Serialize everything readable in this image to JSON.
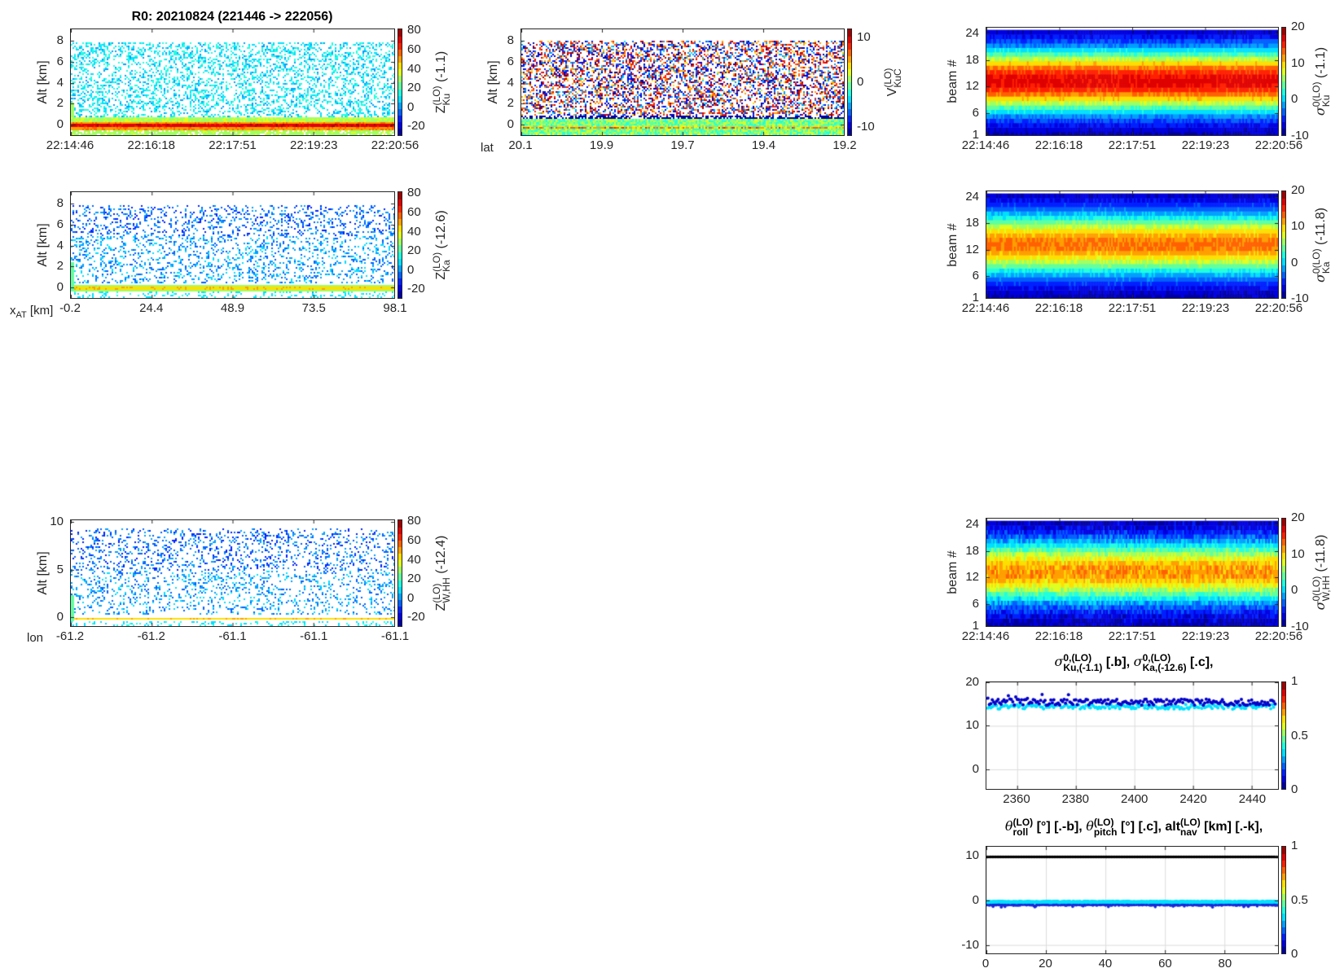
{
  "figure_title": "R0:  20210824 (221446 -> 222056)",
  "time_ticks": [
    "22:14:46",
    "22:16:18",
    "22:17:51",
    "22:19:23",
    "22:20:56"
  ],
  "colors": {
    "ku_dots": "#0000c8",
    "ka_dots": "#00e0ff",
    "alt_dots": "#000000"
  },
  "panels": {
    "ku_refl": {
      "ylabel": "Alt [km]",
      "yticks": [
        0,
        2,
        4,
        6,
        8
      ],
      "yrange": [
        -1,
        9.1
      ],
      "cbticks": [
        80,
        60,
        40,
        20,
        0,
        -20
      ],
      "cbrange": [
        -30,
        82
      ],
      "cb_main": "Z",
      "cb_sup": "(LO)",
      "cb_sub": "Ku",
      "cb_suffix": " (-1.1)"
    },
    "ku_vel": {
      "ylabel": "Alt [km]",
      "yticks": [
        0,
        2,
        4,
        6,
        8
      ],
      "yrange": [
        -1,
        9.1
      ],
      "xlabel": "lat",
      "xticks": [
        "20.1",
        "19.9",
        "19.7",
        "19.4",
        "19.2"
      ],
      "cbticks": [
        10,
        0,
        -10
      ],
      "cbrange": [
        -12,
        12
      ],
      "cb_main": "V",
      "cb_sup": "(LO)",
      "cb_sub": "KuC"
    },
    "ku_sigma_beam": {
      "ylabel": "beam #",
      "yticks": [
        1,
        6,
        12,
        18,
        24
      ],
      "yrange": [
        1,
        25.3
      ],
      "cbticks": [
        20,
        10,
        0,
        -10
      ],
      "cbrange": [
        -10,
        20
      ],
      "cb_main": "σ",
      "cb_sup": "0(LO)",
      "cb_sub": "Ku",
      "cb_suffix": " (-1.1)"
    },
    "ka_refl": {
      "ylabel": "Alt [km]",
      "yticks": [
        0,
        2,
        4,
        6,
        8
      ],
      "yrange": [
        -1,
        9.1
      ],
      "xlabel_main": "x",
      "xlabel_sub": "AT",
      "xlabel_suffix": " [km]",
      "xticks": [
        "-0.2",
        "24.4",
        "48.9",
        "73.5",
        "98.1"
      ],
      "cbticks": [
        80,
        60,
        40,
        20,
        0,
        -20
      ],
      "cbrange": [
        -30,
        82
      ],
      "cb_main": "Z",
      "cb_sup": "(LO)",
      "cb_sub": "Ka",
      "cb_suffix": " (-12.6)"
    },
    "ka_sigma_beam": {
      "ylabel": "beam #",
      "yticks": [
        1,
        6,
        12,
        18,
        24
      ],
      "yrange": [
        1,
        25.3
      ],
      "cbticks": [
        20,
        10,
        0,
        -10
      ],
      "cbrange": [
        -10,
        20
      ],
      "cb_main": "σ",
      "cb_sup": "0(LO)",
      "cb_sub": "Ka",
      "cb_suffix": " (-11.8)"
    },
    "w_refl": {
      "ylabel": "Alt [km]",
      "yticks": [
        0,
        5,
        10
      ],
      "yrange": [
        -0.9,
        10.2
      ],
      "xlabel": "lon",
      "xticks": [
        "-61.2",
        "-61.2",
        "-61.1",
        "-61.1",
        "-61.1"
      ],
      "cbticks": [
        80,
        60,
        40,
        20,
        0,
        -20
      ],
      "cbrange": [
        -30,
        82
      ],
      "cb_main": "Z",
      "cb_sup": "(LO)",
      "cb_sub": "W,HH",
      "cb_suffix": " (-12.4)"
    },
    "w_sigma_beam": {
      "ylabel": "beam #",
      "yticks": [
        1,
        6,
        12,
        18,
        24
      ],
      "yrange": [
        1,
        25.3
      ],
      "cbticks": [
        20,
        10,
        0,
        -10
      ],
      "cbrange": [
        -10,
        20
      ],
      "cb_main": "σ",
      "cb_sup": "0(LO)",
      "cb_sub": "W,HH",
      "cb_suffix": " (-11.8)"
    },
    "sigma_scatter": {
      "title_a_sup": "0,(LO)",
      "title_a_sub": "Ku,(-1.1)",
      "title_a_tail": " [.b],  ",
      "title_b_sup": "0,(LO)",
      "title_b_sub": "Ka,(-12.6)",
      "title_b_tail": " [.c],",
      "yticks": [
        0,
        10,
        20
      ],
      "yrange": [
        -4.5,
        20
      ],
      "xticks": [
        2360,
        2380,
        2400,
        2420,
        2440
      ],
      "xrange": [
        2349.5,
        2449
      ],
      "cbticks": [
        1,
        0.5,
        0
      ],
      "cbrange": [
        0,
        1
      ]
    },
    "attitude": {
      "t1_main": "θ",
      "t1_sup": "(LO)",
      "t1_sub": "roll",
      "t1_tail": " [°] [.-b],  ",
      "t2_main": "θ",
      "t2_sup": "(LO)",
      "t2_sub": "pitch",
      "t2_tail": " [°] [.c],  ",
      "t3_main": "alt",
      "t3_sup": "(LO)",
      "t3_sub": "nav",
      "t3_tail": " [km] [.-k],",
      "yticks": [
        -10,
        0,
        10
      ],
      "yrange": [
        -11.9,
        12.1
      ],
      "xticks": [
        0,
        20,
        40,
        60,
        80
      ],
      "xrange": [
        0,
        98
      ],
      "cbticks": [
        1,
        0.5,
        0
      ],
      "cbrange": [
        0,
        1
      ]
    }
  },
  "chart_data": [
    {
      "type": "heatmap",
      "title": "Ku reflectivity",
      "ylabel": "Alt [km]",
      "ylim": [
        -1,
        9.1
      ],
      "surface_alt_km": 0,
      "surface_value": 70,
      "clear_air_value_range": [
        0,
        20
      ]
    },
    {
      "type": "heatmap",
      "title": "Ku velocity",
      "xlabel": "lat",
      "ylabel": "Alt [km]",
      "value_range": [
        -12,
        12
      ]
    },
    {
      "type": "heatmap",
      "title": "sigma0 Ku by beam",
      "ylabel": "beam #",
      "peak_beam": 13,
      "peak_value": 17,
      "edge_value": -10
    },
    {
      "type": "heatmap",
      "title": "Ka reflectivity",
      "ylabel": "Alt [km]",
      "surface_value": 45,
      "clear_air_value_range": [
        -15,
        10
      ]
    },
    {
      "type": "heatmap",
      "title": "sigma0 Ka by beam",
      "ylabel": "beam #",
      "peak_beam": 13,
      "peak_value": 13,
      "edge_value": -10
    },
    {
      "type": "heatmap",
      "title": "W,HH reflectivity",
      "ylabel": "Alt [km]",
      "ylim": [
        -0.9,
        10.2
      ],
      "surface_value": 45
    },
    {
      "type": "heatmap",
      "title": "sigma0 W,HH by beam",
      "ylabel": "beam #",
      "peak_beam": 13,
      "peak_value": 12,
      "edge_value": -10
    },
    {
      "type": "scatter",
      "title": "sigma0 Ku [.b], sigma0 Ka [.c]",
      "xlim": [
        2349.5,
        2449
      ],
      "ylim": [
        -4.5,
        20
      ],
      "series": [
        {
          "name": "Ku",
          "mean": 15.4,
          "spread": 0.7
        },
        {
          "name": "Ka",
          "mean": 14.4,
          "spread": 0.5
        }
      ]
    },
    {
      "type": "scatter",
      "title": "roll [.-b], pitch [.c], alt [.-k]",
      "xlim": [
        0,
        98
      ],
      "ylim": [
        -11.9,
        12.1
      ],
      "series": [
        {
          "name": "roll",
          "mean": -0.8,
          "spread": 0.25
        },
        {
          "name": "pitch",
          "mean": -0.3,
          "spread": 0.1
        },
        {
          "name": "alt_nav",
          "mean": 9.8,
          "spread": 0.02
        }
      ]
    }
  ]
}
